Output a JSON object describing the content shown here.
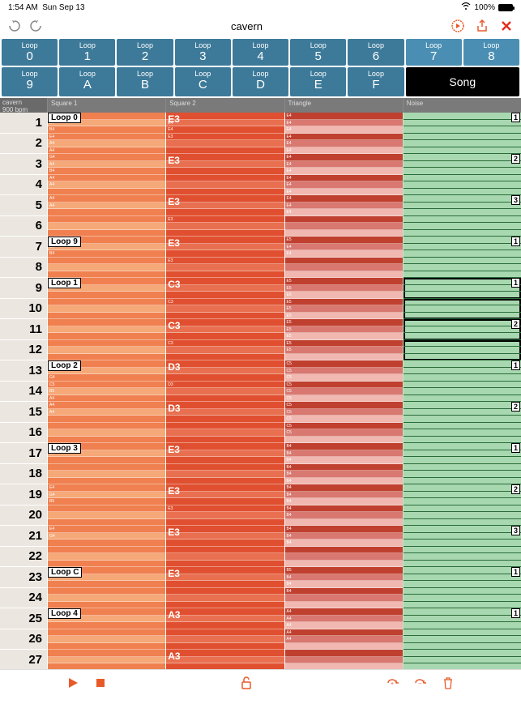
{
  "status": {
    "time": "1:54 AM",
    "date": "Sun Sep 13",
    "battery": "100%",
    "wifi": "wifi-icon"
  },
  "toolbar": {
    "title": "cavern"
  },
  "loops": {
    "row1": [
      {
        "top": "Loop",
        "val": "0"
      },
      {
        "top": "Loop",
        "val": "1"
      },
      {
        "top": "Loop",
        "val": "2"
      },
      {
        "top": "Loop",
        "val": "3"
      },
      {
        "top": "Loop",
        "val": "4"
      },
      {
        "top": "Loop",
        "val": "5"
      },
      {
        "top": "Loop",
        "val": "6"
      },
      {
        "top": "Loop",
        "val": "7",
        "accent": true
      },
      {
        "top": "Loop",
        "val": "8",
        "accent": true
      }
    ],
    "row2": [
      {
        "top": "Loop",
        "val": "9"
      },
      {
        "top": "Loop",
        "val": "A"
      },
      {
        "top": "Loop",
        "val": "B"
      },
      {
        "top": "Loop",
        "val": "C"
      },
      {
        "top": "Loop",
        "val": "D"
      },
      {
        "top": "Loop",
        "val": "E"
      },
      {
        "top": "Loop",
        "val": "F"
      }
    ],
    "song_label": "Song"
  },
  "header": {
    "info_title": "cavern",
    "info_bpm": "900 bpm",
    "channels": [
      "Square 1",
      "Square 2",
      "Triangle",
      "Noise"
    ]
  },
  "colors": {
    "sq1_main": "#f08050",
    "sq1_alt": "#f5a878",
    "sq1_light": "#fad0b0",
    "sq2_main": "#e05030",
    "sq2_alt": "#e87050",
    "tri_main": "#c04030",
    "tri_alt": "#d87870",
    "tri_light": "#f0b8b0",
    "noise_main": "#a8d8b0",
    "noise_line": "#2a6b3a"
  },
  "rows": [
    {
      "n": 1,
      "loop": "Loop 0",
      "sq1": [
        "D4",
        "E4",
        "B4"
      ],
      "sq2": "E3",
      "sq2m": [
        "",
        "E4",
        "E4"
      ],
      "tri": [
        "E4",
        "E4",
        "E4"
      ],
      "noise": "",
      "nnum": "1",
      "sel": false
    },
    {
      "n": 2,
      "sq1": [
        "E4",
        "A4",
        "A4"
      ],
      "sq2": "",
      "sq2m": [
        "E3",
        "",
        ""
      ],
      "tri": [
        "E4",
        "E4",
        "E4"
      ],
      "noise": "",
      "nnum": "",
      "sel": false
    },
    {
      "n": 3,
      "sq1": [
        "G4",
        "A4",
        "B4"
      ],
      "sq2": "E3",
      "sq2m": [
        "",
        "",
        ""
      ],
      "tri": [
        "E4",
        "E4",
        "E4"
      ],
      "noise": "",
      "nnum": "2",
      "sel": false
    },
    {
      "n": 4,
      "sq1": [
        "A4",
        "A4",
        ""
      ],
      "sq2": "",
      "sq2m": [
        "",
        "",
        ""
      ],
      "tri": [
        "E4",
        "E4",
        "E4"
      ],
      "noise": "",
      "nnum": "",
      "sel": false
    },
    {
      "n": 5,
      "sq1": [
        "A4",
        "A4",
        ""
      ],
      "sq2": "E3",
      "sq2m": [
        "",
        "",
        ""
      ],
      "tri": [
        "E4",
        "E4",
        "E4"
      ],
      "noise": "",
      "nnum": "3",
      "sel": false
    },
    {
      "n": 6,
      "sq1": [
        "",
        "",
        ""
      ],
      "sq2": "",
      "sq2m": [
        "E3",
        "",
        ""
      ],
      "tri": [
        "",
        "",
        ""
      ],
      "noise": "",
      "nnum": "",
      "sel": false
    },
    {
      "n": 7,
      "loop": "Loop 9",
      "sq1": [
        "G4",
        "G4",
        "B4"
      ],
      "sq2": "E3",
      "sq2m": [
        "",
        "",
        ""
      ],
      "tri": [
        "E5",
        "E4",
        "E4"
      ],
      "noise": "",
      "nnum": "1",
      "sel": false
    },
    {
      "n": 8,
      "sq1": [
        "",
        "",
        ""
      ],
      "sq2": "",
      "sq2m": [
        "E3",
        "",
        ""
      ],
      "tri": [
        "",
        "",
        ""
      ],
      "noise": "",
      "nnum": "",
      "sel": false
    },
    {
      "n": 9,
      "loop": "Loop 1",
      "sq1": [
        "A4",
        "B4",
        ""
      ],
      "sq2": "C3",
      "sq2m": [
        "",
        "",
        ""
      ],
      "tri": [
        "E5",
        "E5",
        "E5"
      ],
      "noise": "",
      "nnum": "1",
      "sel": true
    },
    {
      "n": 10,
      "sq1": [
        "",
        "",
        ""
      ],
      "sq2": "",
      "sq2m": [
        "C3",
        "",
        ""
      ],
      "tri": [
        "E5",
        "E5",
        "E5"
      ],
      "noise": "",
      "nnum": "",
      "sel": true
    },
    {
      "n": 11,
      "sq1": [
        "",
        "",
        ""
      ],
      "sq2": "C3",
      "sq2m": [
        "",
        "",
        ""
      ],
      "tri": [
        "E5",
        "E5",
        "E5"
      ],
      "noise": "",
      "nnum": "2",
      "sel": true
    },
    {
      "n": 12,
      "sq1": [
        "",
        "",
        ""
      ],
      "sq2": "",
      "sq2m": [
        "C3",
        "",
        ""
      ],
      "tri": [
        "E5",
        "E5",
        ""
      ],
      "noise": "",
      "nnum": "",
      "sel": true
    },
    {
      "n": 13,
      "loop": "Loop 2",
      "sq1": [
        "B5",
        "A4",
        "G4"
      ],
      "sq2": "D3",
      "sq2m": [
        "",
        "",
        ""
      ],
      "tri": [
        "C5",
        "C5",
        "C5"
      ],
      "noise": "",
      "nnum": "1",
      "sel": false
    },
    {
      "n": 14,
      "sq1": [
        "C5",
        "B5",
        "A4"
      ],
      "sq2": "",
      "sq2m": [
        "D3",
        "",
        ""
      ],
      "tri": [
        "C5",
        "C5",
        "C5"
      ],
      "noise": "",
      "nnum": "",
      "sel": false
    },
    {
      "n": 15,
      "sq1": [
        "A4",
        "A4",
        ""
      ],
      "sq2": "D3",
      "sq2m": [
        "",
        "",
        ""
      ],
      "tri": [
        "C5",
        "C5",
        "C5"
      ],
      "noise": "",
      "nnum": "2",
      "sel": false
    },
    {
      "n": 16,
      "sq1": [
        "",
        "",
        ""
      ],
      "sq2": "",
      "sq2m": [
        "",
        "",
        ""
      ],
      "tri": [
        "C5",
        "C5",
        ""
      ],
      "noise": "",
      "nnum": "",
      "sel": false
    },
    {
      "n": 17,
      "loop": "Loop 3",
      "sq1": [
        "E4",
        "G4",
        ""
      ],
      "sq2": "E3",
      "sq2m": [
        "",
        "",
        ""
      ],
      "tri": [
        "B4",
        "B4",
        "B4"
      ],
      "noise": "",
      "nnum": "1",
      "sel": false
    },
    {
      "n": 18,
      "sq1": [
        "",
        "",
        ""
      ],
      "sq2": "",
      "sq2m": [
        "",
        "",
        ""
      ],
      "tri": [
        "B4",
        "B4",
        "B4"
      ],
      "noise": "",
      "nnum": "",
      "sel": false
    },
    {
      "n": 19,
      "sq1": [
        "E4",
        "G4",
        "B5"
      ],
      "sq2": "E3",
      "sq2m": [
        "",
        "",
        ""
      ],
      "tri": [
        "B4",
        "B4",
        "B4"
      ],
      "noise": "",
      "nnum": "2",
      "sel": false
    },
    {
      "n": 20,
      "sq1": [
        "",
        "",
        ""
      ],
      "sq2": "",
      "sq2m": [
        "E3",
        "",
        ""
      ],
      "tri": [
        "B4",
        "B4",
        ""
      ],
      "noise": "",
      "nnum": "",
      "sel": false
    },
    {
      "n": 21,
      "sq1": [
        "E4",
        "G4",
        ""
      ],
      "sq2": "E3",
      "sq2m": [
        "",
        "",
        ""
      ],
      "tri": [
        "B4",
        "B4",
        "B4"
      ],
      "noise": "",
      "nnum": "3",
      "sel": false
    },
    {
      "n": 22,
      "sq1": [
        "",
        "",
        ""
      ],
      "sq2": "",
      "sq2m": [
        "",
        "",
        ""
      ],
      "tri": [
        "",
        "",
        ""
      ],
      "noise": "",
      "nnum": "",
      "sel": false
    },
    {
      "n": 23,
      "loop": "Loop C",
      "sq1": [
        "",
        "",
        ""
      ],
      "sq2": "E3",
      "sq2m": [
        "",
        "",
        ""
      ],
      "tri": [
        "B5",
        "B4",
        "B4"
      ],
      "noise": "",
      "nnum": "1",
      "sel": false
    },
    {
      "n": 24,
      "sq1": [
        "",
        "",
        ""
      ],
      "sq2": "",
      "sq2m": [
        "",
        "",
        ""
      ],
      "tri": [
        "B4",
        "",
        ""
      ],
      "noise": "",
      "nnum": "",
      "sel": false
    },
    {
      "n": 25,
      "loop": "Loop 4",
      "sq1": [
        "A4",
        "A4",
        ""
      ],
      "sq2": "A3",
      "sq2m": [
        "",
        "",
        ""
      ],
      "tri": [
        "A4",
        "A4",
        "A4"
      ],
      "noise": "",
      "nnum": "1",
      "sel": false
    },
    {
      "n": 26,
      "sq1": [
        "",
        "",
        ""
      ],
      "sq2": "",
      "sq2m": [
        "",
        "",
        ""
      ],
      "tri": [
        "A4",
        "A4",
        ""
      ],
      "noise": "",
      "nnum": "",
      "sel": false
    },
    {
      "n": 27,
      "sq1": [
        "",
        "",
        ""
      ],
      "sq2": "A3",
      "sq2m": [
        "",
        "",
        ""
      ],
      "tri": [
        "",
        "",
        ""
      ],
      "noise": "",
      "nnum": "",
      "sel": false
    }
  ]
}
